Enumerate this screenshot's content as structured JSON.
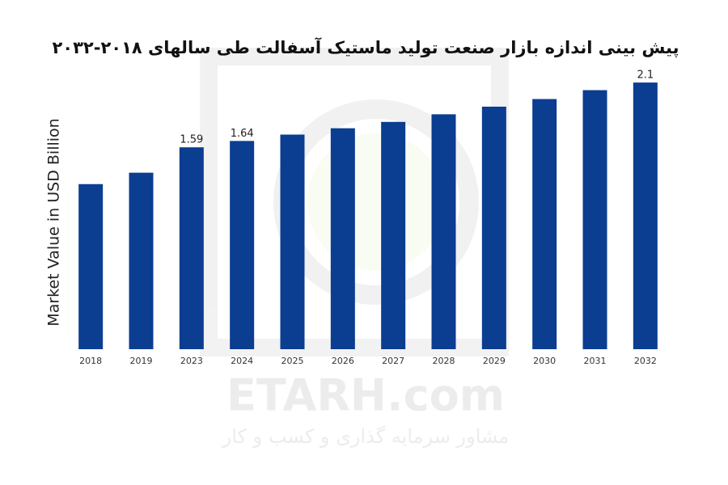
{
  "chart_data": {
    "type": "bar",
    "title": "پیش بینی اندازه بازار صنعت تولید ماستیک آسفالت طی سالهای ۲۰۱۸-۲۰۳۲",
    "y_label": "Market Value in USD Billion",
    "categories": [
      "2018",
      "2019",
      "2023",
      "2024",
      "2025",
      "2026",
      "2027",
      "2028",
      "2029",
      "2030",
      "2031",
      "2032"
    ],
    "values": [
      1.3,
      1.39,
      1.59,
      1.64,
      1.69,
      1.74,
      1.79,
      1.85,
      1.91,
      1.97,
      2.04,
      2.1
    ],
    "value_labels": [
      null,
      null,
      "1.59",
      "1.64",
      null,
      null,
      null,
      null,
      null,
      null,
      null,
      "2.1"
    ],
    "color": "#0b3d91",
    "ylim": [
      0,
      2.2
    ],
    "grid": false
  },
  "watermark": {
    "title": "ETARH.com",
    "subtitle": "مشاور سرمایه گذاری و کسب و کار"
  }
}
